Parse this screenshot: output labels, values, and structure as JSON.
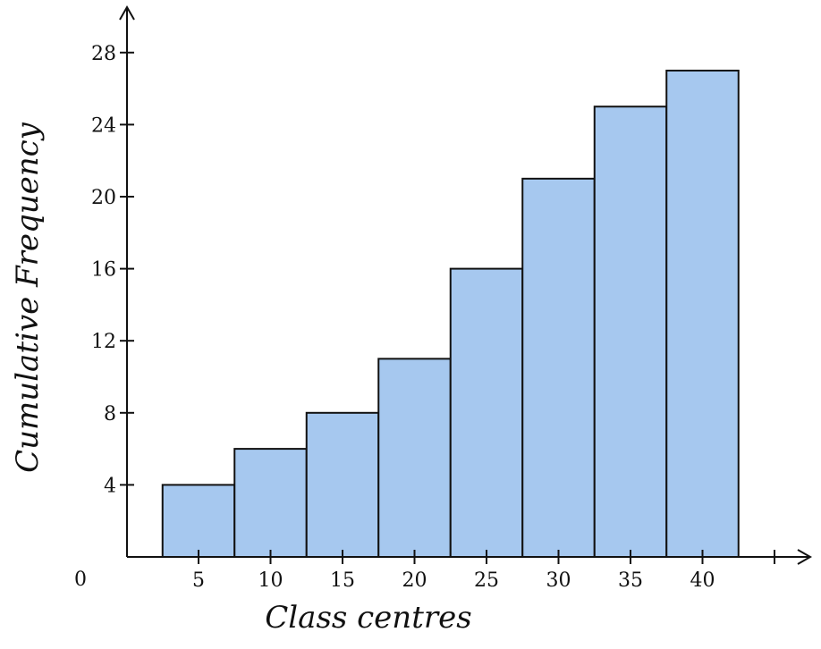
{
  "chart_data": {
    "type": "bar",
    "title": "",
    "xlabel": "Class centres",
    "ylabel": "Cumulative Frequency",
    "origin_label": "0",
    "categories": [
      "5",
      "10",
      "15",
      "20",
      "25",
      "30",
      "35",
      "40"
    ],
    "x": [
      5,
      10,
      15,
      20,
      25,
      30,
      35,
      40
    ],
    "values": [
      4,
      6,
      8,
      11,
      16,
      21,
      25,
      27
    ],
    "y_ticks": [
      4,
      8,
      12,
      16,
      20,
      24,
      28
    ],
    "ylim": [
      0,
      28
    ],
    "grid": false,
    "legend": "none",
    "bar_color": "#a6c8ef",
    "edge_color": "#111111"
  }
}
